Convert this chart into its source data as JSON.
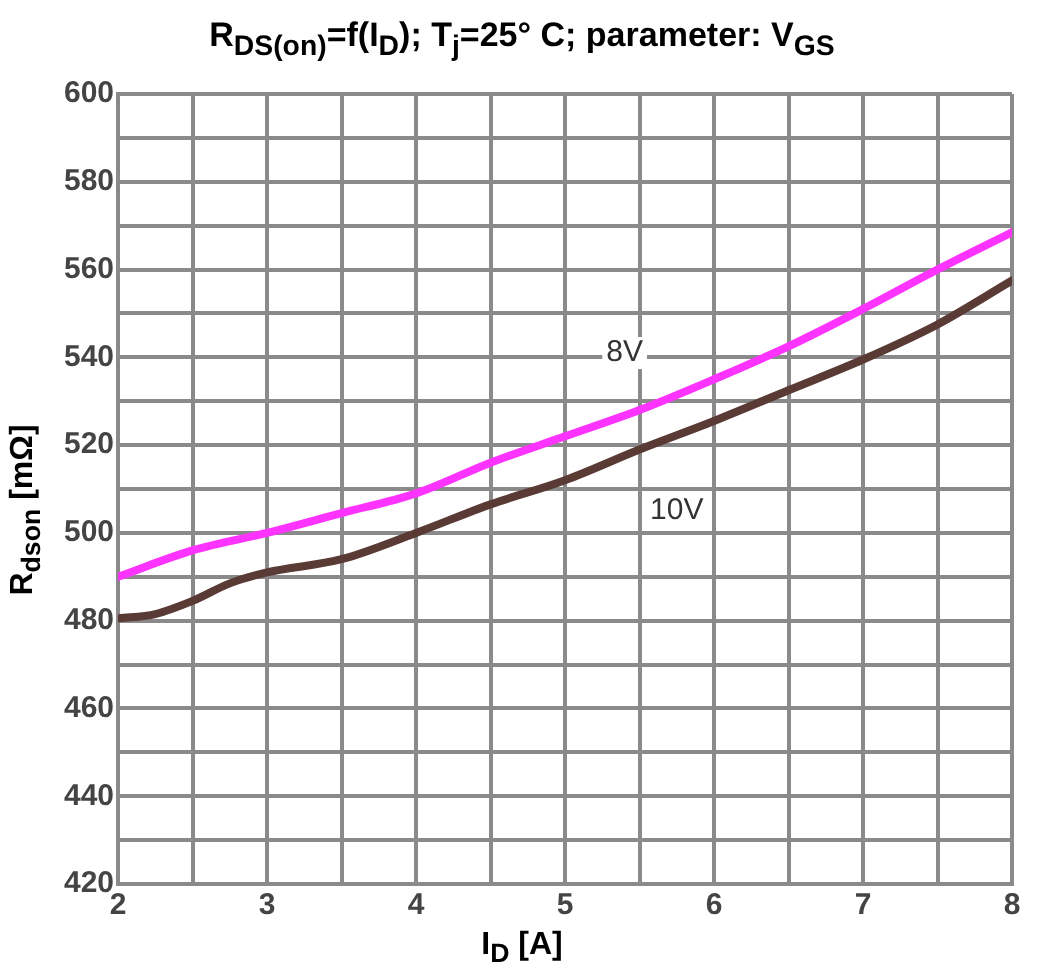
{
  "chart_data": {
    "type": "line",
    "title": "R$_{DS(on)}$=f(I$_{D}$); T$_{j}$=25° C; parameter: V$_{GS}$",
    "xlabel": "I$_{D}$ [A]",
    "ylabel": "R$_{dson}$ [mΩ]",
    "x": [
      2,
      2.5,
      3,
      3.5,
      4,
      4.5,
      5,
      5.5,
      6,
      6.5,
      7,
      7.5,
      8
    ],
    "series": [
      {
        "color": "#ff33ff",
        "values": [
          490,
          496,
          500,
          504.5,
          509,
          516,
          522,
          528,
          535,
          542.5,
          551,
          560,
          568.5
        ]
      },
      {
        "color": "#5a3a35",
        "x": [
          2,
          2.25,
          2.5,
          2.75,
          3,
          3.5,
          4,
          4.5,
          5,
          5.5,
          6,
          6.5,
          7,
          7.5,
          8
        ],
        "values": [
          480.5,
          481.5,
          484.5,
          488.5,
          491,
          494,
          500,
          506.5,
          512,
          519,
          525.5,
          532.5,
          539.5,
          547.5,
          557.5
        ]
      }
    ],
    "annotations": [
      {
        "text": "8V",
        "x": 5.4,
        "y": 541
      },
      {
        "text": "10V",
        "x": 5.75,
        "y": 505
      }
    ],
    "xlim": [
      2,
      8
    ],
    "ylim": [
      420,
      600
    ],
    "xticks": [
      2,
      {
        "value": 2.5,
        "label": null
      },
      3,
      {
        "value": 3.5,
        "label": null
      },
      4,
      {
        "value": 4.5,
        "label": null
      },
      5,
      {
        "value": 5.5,
        "label": null
      },
      6,
      {
        "value": 6.5,
        "label": null
      },
      7,
      {
        "value": 7.5,
        "label": null
      },
      8
    ],
    "yticks": [
      420,
      {
        "value": 430,
        "label": null
      },
      440,
      {
        "value": 450,
        "label": null
      },
      460,
      {
        "value": 470,
        "label": null
      },
      480,
      {
        "value": 490,
        "label": null
      },
      500,
      {
        "value": 510,
        "label": null
      },
      520,
      {
        "value": 530,
        "label": null
      },
      540,
      {
        "value": 550,
        "label": null
      },
      560,
      {
        "value": 570,
        "label": null
      },
      580,
      {
        "value": 590,
        "label": null
      },
      600
    ],
    "grid": true,
    "legend": false,
    "marker": "none",
    "line_style": "solid"
  }
}
